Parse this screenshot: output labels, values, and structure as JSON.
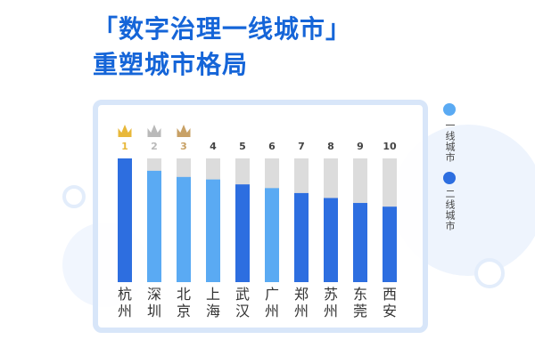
{
  "header": {
    "title_line1": "「数字治理一线城市」",
    "title_line2": "重塑城市格局"
  },
  "legend": [
    {
      "label": "一线城市",
      "color": "#5aaaf3"
    },
    {
      "label": "二线城市",
      "color": "#2d6ee0"
    }
  ],
  "colors": {
    "tier1": "#5aaaf3",
    "tier2": "#2d6ee0",
    "track": "#dcdcdc",
    "gold": "#e8b83a",
    "silver": "#b9b9b9",
    "bronze": "#c8a166",
    "rank_text": "#444444"
  },
  "chart_data": {
    "type": "bar",
    "categories": [
      "杭州",
      "深圳",
      "北京",
      "上海",
      "武汉",
      "广州",
      "郑州",
      "苏州",
      "东莞",
      "西安"
    ],
    "ranks": [
      "1",
      "2",
      "3",
      "4",
      "5",
      "6",
      "7",
      "8",
      "9",
      "10"
    ],
    "tiers": [
      2,
      1,
      1,
      1,
      2,
      1,
      2,
      2,
      2,
      2
    ],
    "values": [
      100,
      90,
      85,
      83,
      79,
      76,
      72,
      68,
      64,
      61
    ],
    "max": 100,
    "crowns": [
      "gold",
      "silver",
      "bronze"
    ],
    "grid": false
  }
}
